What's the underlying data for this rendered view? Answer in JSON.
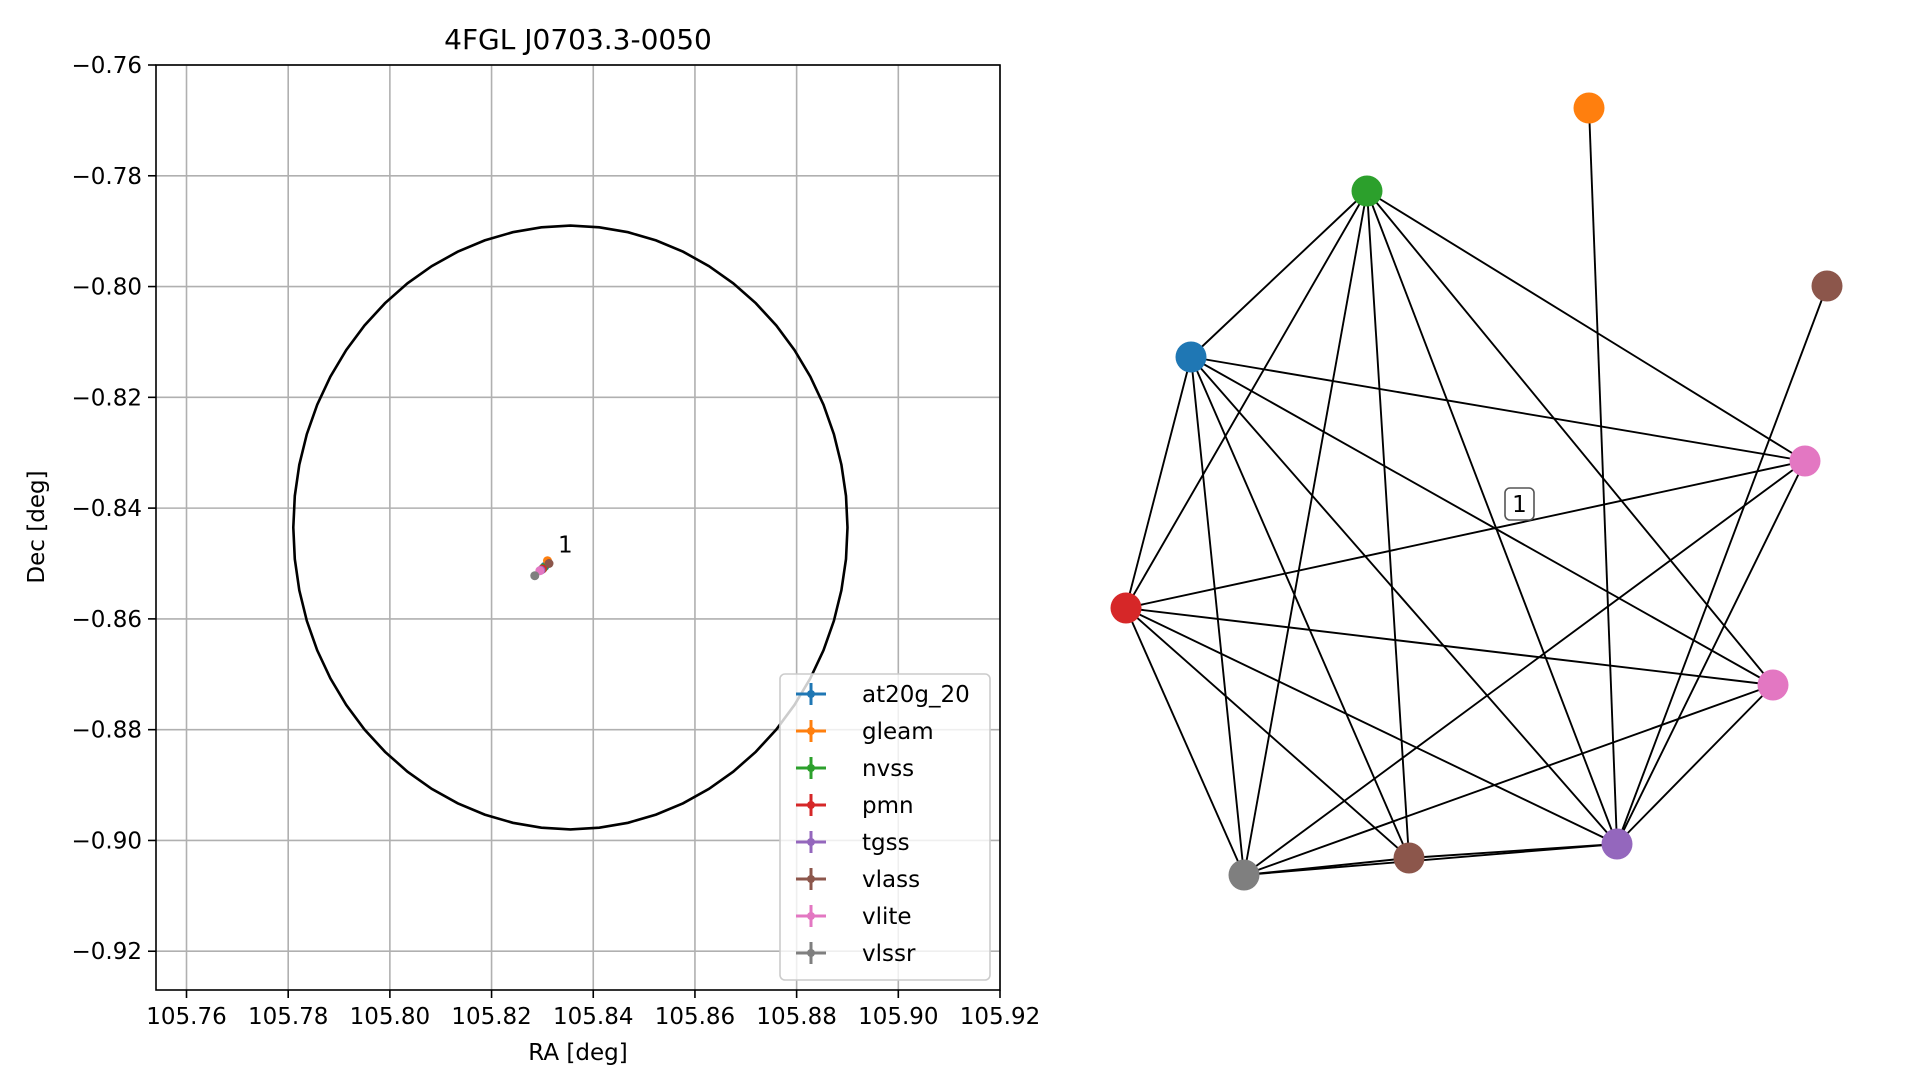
{
  "chart_data": [
    {
      "type": "scatter",
      "title": "4FGL J0703.3-0050",
      "xlabel": "RA [deg]",
      "ylabel": "Dec [deg]",
      "xlim": [
        105.754,
        105.92
      ],
      "ylim": [
        -0.927,
        -0.76
      ],
      "xticks": [
        105.76,
        105.78,
        105.8,
        105.82,
        105.84,
        105.86,
        105.88,
        105.9,
        105.92
      ],
      "xtick_labels": [
        "105.76",
        "105.78",
        "105.80",
        "105.82",
        "105.84",
        "105.86",
        "105.88",
        "105.90",
        "105.92"
      ],
      "yticks": [
        -0.76,
        -0.78,
        -0.8,
        -0.82,
        -0.84,
        -0.86,
        -0.88,
        -0.9,
        -0.92
      ],
      "ytick_labels": [
        "−0.76",
        "−0.78",
        "−0.80",
        "−0.82",
        "−0.84",
        "−0.86",
        "−0.88",
        "−0.90",
        "−0.92"
      ],
      "grid": true,
      "legend_position": "lower-right",
      "ellipse": {
        "center": [
          105.8355,
          -0.8435
        ],
        "semi_x": 0.0545,
        "semi_y": 0.0545,
        "color": "#000000"
      },
      "annotations": [
        {
          "text": "1",
          "x": 105.8315,
          "y": -0.8495
        }
      ],
      "series": [
        {
          "name": "at20g_20",
          "color": "#1f77b4",
          "x": [
            105.8305
          ],
          "y": [
            -0.8505
          ]
        },
        {
          "name": "gleam",
          "color": "#ff7f0e",
          "x": [
            105.831
          ],
          "y": [
            -0.8495
          ]
        },
        {
          "name": "nvss",
          "color": "#2ca02c",
          "x": [
            105.8302
          ],
          "y": [
            -0.8508
          ]
        },
        {
          "name": "pmn",
          "color": "#d62728",
          "x": [
            105.83
          ],
          "y": [
            -0.851
          ]
        },
        {
          "name": "tgss",
          "color": "#9467bd",
          "x": [
            105.8297
          ],
          "y": [
            -0.8512
          ]
        },
        {
          "name": "vlass",
          "color": "#8c564b",
          "x": [
            105.8313
          ],
          "y": [
            -0.85
          ]
        },
        {
          "name": "vlite",
          "color": "#e377c2",
          "x": [
            105.8295
          ],
          "y": [
            -0.8513
          ]
        },
        {
          "name": "vlssr",
          "color": "#7f7f7f",
          "x": [
            105.8285
          ],
          "y": [
            -0.8522
          ]
        }
      ]
    },
    {
      "type": "network",
      "label": "1",
      "nodes": [
        {
          "id": "blue",
          "color": "#1f77b4"
        },
        {
          "id": "orange",
          "color": "#ff7f0e"
        },
        {
          "id": "green",
          "color": "#2ca02c"
        },
        {
          "id": "red",
          "color": "#d62728"
        },
        {
          "id": "purple",
          "color": "#9467bd"
        },
        {
          "id": "brown-top",
          "color": "#8c564b"
        },
        {
          "id": "brown-bottom",
          "color": "#8c564b"
        },
        {
          "id": "pink-upper",
          "color": "#e377c2"
        },
        {
          "id": "pink-lower",
          "color": "#e377c2"
        },
        {
          "id": "gray",
          "color": "#7f7f7f"
        }
      ],
      "edges": [
        [
          "green",
          "blue"
        ],
        [
          "green",
          "red"
        ],
        [
          "green",
          "gray"
        ],
        [
          "green",
          "brown-bottom"
        ],
        [
          "green",
          "purple"
        ],
        [
          "green",
          "pink-upper"
        ],
        [
          "green",
          "pink-lower"
        ],
        [
          "blue",
          "pink-upper"
        ],
        [
          "blue",
          "red"
        ],
        [
          "blue",
          "gray"
        ],
        [
          "blue",
          "brown-bottom"
        ],
        [
          "blue",
          "purple"
        ],
        [
          "blue",
          "pink-lower"
        ],
        [
          "red",
          "pink-upper"
        ],
        [
          "red",
          "pink-lower"
        ],
        [
          "red",
          "gray"
        ],
        [
          "red",
          "brown-bottom"
        ],
        [
          "red",
          "purple"
        ],
        [
          "gray",
          "pink-upper"
        ],
        [
          "gray",
          "pink-lower"
        ],
        [
          "gray",
          "brown-bottom"
        ],
        [
          "gray",
          "purple"
        ],
        [
          "brown-bottom",
          "purple"
        ],
        [
          "purple",
          "pink-upper"
        ],
        [
          "purple",
          "pink-lower"
        ],
        [
          "purple",
          "brown-top"
        ],
        [
          "purple",
          "orange"
        ]
      ]
    }
  ]
}
